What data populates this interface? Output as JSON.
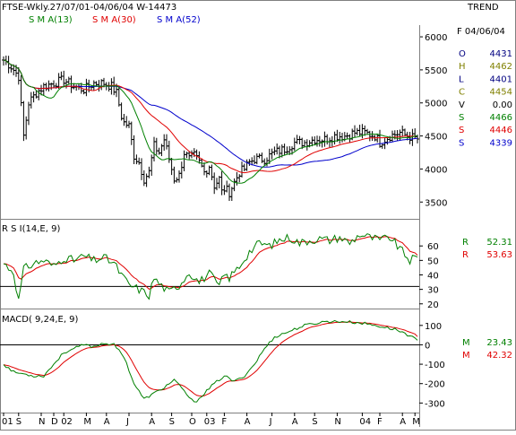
{
  "header": {
    "title": "FTSE-Wkly.27/07/01-04/06/04  W-14473",
    "sma_labels": [
      "S M A(13)",
      "S M A(30)",
      "S M A(52)"
    ],
    "trend_label": "TREND",
    "date_label": "F 04/06/04"
  },
  "colors": {
    "background": "#ffffff",
    "bars": "#000000",
    "sma13": "#008000",
    "sma30": "#e00000",
    "sma52": "#0000cc",
    "rsi": "#008000",
    "rsi_signal": "#e00000",
    "macd": "#008000",
    "macd_signal": "#e00000",
    "label_o": "#000080",
    "label_h": "#808000",
    "label_l": "#000080",
    "label_c": "#808000",
    "label_v": "#000000",
    "label_s1": "#008000",
    "label_s2": "#e00000",
    "label_s3": "#0000cc",
    "label_r1": "#008000",
    "label_r2": "#e00000",
    "label_m1": "#008000",
    "label_m2": "#e00000"
  },
  "stats": [
    {
      "label": "O",
      "value": "4431",
      "color_key": "label_o"
    },
    {
      "label": "H",
      "value": "4462",
      "color_key": "label_h"
    },
    {
      "label": "L",
      "value": "4401",
      "color_key": "label_l"
    },
    {
      "label": "C",
      "value": "4454",
      "color_key": "label_c"
    },
    {
      "label": "V",
      "value": "0.00",
      "color_key": "label_v"
    },
    {
      "label": "S",
      "value": "4466",
      "color_key": "label_s1"
    },
    {
      "label": "S",
      "value": "4446",
      "color_key": "label_s2"
    },
    {
      "label": "S",
      "value": "4339",
      "color_key": "label_s3"
    }
  ],
  "rsi_panel": {
    "label": "R S I(14,E, 9)",
    "readouts": [
      {
        "label": "R",
        "value": "52.31",
        "color_key": "label_r1"
      },
      {
        "label": "R",
        "value": "53.63",
        "color_key": "label_r2"
      }
    ]
  },
  "macd_panel": {
    "label": "MACD( 9,24,E, 9)",
    "readouts": [
      {
        "label": "M",
        "value": "23.43",
        "color_key": "label_m1"
      },
      {
        "label": "M",
        "value": "42.32",
        "color_key": "label_m2"
      }
    ]
  },
  "chart_data": {
    "type": "line",
    "x_tick_labels": [
      "01",
      "S",
      "N",
      "D",
      "02",
      "M",
      "A",
      "J",
      "A",
      "S",
      "O",
      "03",
      "F",
      "A",
      "J",
      "A",
      "S",
      "N",
      "04",
      "F",
      "A",
      "M"
    ],
    "x_tick_weeks": [
      0,
      6,
      15,
      20,
      24,
      33,
      41,
      50,
      59,
      67,
      75,
      81,
      88,
      97,
      107,
      116,
      124,
      133,
      143,
      150,
      159,
      164
    ],
    "price": {
      "ylim": [
        3300,
        6150
      ],
      "yticks": [
        3500,
        4000,
        4500,
        5000,
        5500,
        6000
      ],
      "anchors_week": [
        0,
        3,
        6,
        8,
        10,
        13,
        16,
        20,
        24,
        28,
        32,
        36,
        40,
        43,
        45,
        47,
        48,
        50,
        52,
        54,
        56,
        58,
        60,
        62,
        64,
        66,
        68,
        70,
        72,
        74,
        76,
        78,
        80,
        82,
        84,
        86,
        87,
        88,
        90,
        92,
        94,
        96,
        98,
        100,
        104,
        108,
        112,
        116,
        120,
        124,
        128,
        132,
        136,
        140,
        144,
        148,
        150,
        154,
        158,
        161,
        165
      ],
      "anchors_close": [
        5650,
        5550,
        5400,
        4500,
        5000,
        5150,
        5250,
        5300,
        5350,
        5250,
        5200,
        5300,
        5300,
        5250,
        5150,
        4800,
        4700,
        4650,
        4200,
        4100,
        3850,
        3950,
        4350,
        4250,
        4450,
        4150,
        3850,
        3900,
        4250,
        4150,
        4200,
        4100,
        3950,
        4050,
        3750,
        3850,
        3650,
        3700,
        3650,
        3800,
        3950,
        4000,
        4100,
        4150,
        4150,
        4250,
        4300,
        4400,
        4400,
        4450,
        4450,
        4500,
        4500,
        4550,
        4550,
        4500,
        4400,
        4500,
        4550,
        4500,
        4454
      ]
    },
    "series": [
      {
        "name": "S M A(13)",
        "period": 13
      },
      {
        "name": "S M A(30)",
        "period": 30
      },
      {
        "name": "S M A(52)",
        "period": 52
      }
    ],
    "rsi": {
      "ylim": [
        18,
        75
      ],
      "yticks": [
        20,
        30,
        40,
        50,
        60
      ],
      "reference_line": 32,
      "anchors_week": [
        0,
        4,
        6,
        8,
        12,
        16,
        20,
        24,
        28,
        32,
        36,
        40,
        44,
        47,
        50,
        54,
        58,
        60,
        62,
        66,
        70,
        74,
        78,
        82,
        86,
        88,
        90,
        94,
        98,
        102,
        106,
        110,
        114,
        118,
        122,
        126,
        130,
        134,
        138,
        142,
        146,
        150,
        154,
        158,
        162,
        165
      ],
      "anchors_value": [
        48,
        42,
        22,
        44,
        48,
        50,
        46,
        52,
        50,
        53,
        50,
        52,
        48,
        40,
        33,
        30,
        26,
        38,
        34,
        28,
        33,
        42,
        35,
        41,
        32,
        40,
        38,
        46,
        56,
        62,
        60,
        64,
        66,
        62,
        64,
        65,
        64,
        66,
        62,
        68,
        66,
        64,
        66,
        58,
        50,
        52.31
      ],
      "signal_value": 53.63
    },
    "macd": {
      "ylim": [
        -340,
        150
      ],
      "yticks": [
        -300,
        -200,
        -100,
        0,
        100
      ],
      "reference_line": 0,
      "anchors_week": [
        0,
        4,
        8,
        12,
        16,
        20,
        24,
        28,
        32,
        36,
        40,
        44,
        48,
        52,
        56,
        60,
        64,
        68,
        72,
        76,
        80,
        84,
        88,
        92,
        96,
        100,
        104,
        108,
        112,
        116,
        120,
        124,
        128,
        132,
        136,
        140,
        144,
        148,
        152,
        156,
        160,
        165
      ],
      "anchors_value": [
        -100,
        -140,
        -150,
        -160,
        -160,
        -100,
        -40,
        -20,
        0,
        -10,
        10,
        0,
        -60,
        -200,
        -280,
        -250,
        -220,
        -180,
        -240,
        -300,
        -250,
        -200,
        -160,
        -190,
        -160,
        -100,
        -20,
        40,
        60,
        80,
        100,
        110,
        120,
        120,
        120,
        115,
        110,
        100,
        90,
        80,
        60,
        23.43
      ],
      "signal_value": 42.32
    }
  }
}
